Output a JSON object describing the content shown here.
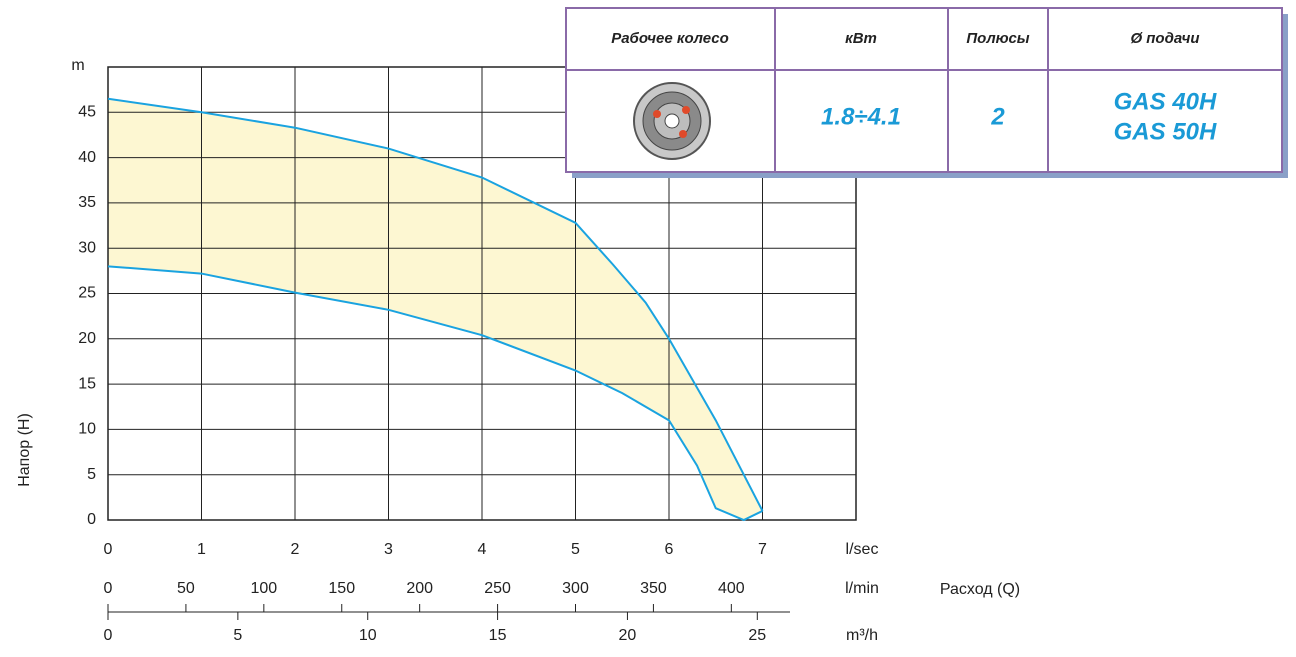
{
  "chart_data": {
    "type": "band",
    "y_axis_title": "Напор (H)",
    "y_unit": "m",
    "x_unit": "l/sec",
    "x_axis_title": "Расход (Q)",
    "xlim": [
      0,
      8
    ],
    "xticks": [
      0,
      1,
      2,
      3,
      4,
      5,
      6,
      7
    ],
    "ylim": [
      0,
      50
    ],
    "yticks": [
      0,
      5,
      10,
      15,
      20,
      25,
      30,
      35,
      40,
      45
    ],
    "grid": true,
    "band_color": "#fdf7d2",
    "series": [
      {
        "color": "#1aa3e0",
        "x": [
          0,
          1,
          2,
          3,
          4,
          5,
          5.4,
          5.75,
          6,
          6.5,
          7
        ],
        "values": [
          46.5,
          45,
          43.3,
          41,
          37.8,
          32.8,
          28.2,
          24,
          20,
          11,
          1
        ]
      },
      {
        "color": "#1aa3e0",
        "x": [
          0,
          1,
          2,
          3,
          4,
          5,
          5.5,
          6,
          6.3,
          6.5,
          6.8,
          7
        ],
        "values": [
          28,
          27.2,
          25.1,
          23.2,
          20.4,
          16.5,
          14,
          11,
          6,
          1.3,
          0,
          1
        ]
      }
    ],
    "secondary_axes": [
      {
        "unit": "l/min",
        "lim": [
          0,
          480
        ],
        "ticks": [
          0,
          50,
          100,
          150,
          200,
          250,
          300,
          350,
          400
        ]
      },
      {
        "unit": "m³/h",
        "lim": [
          0,
          28.8
        ],
        "ticks": [
          0,
          5,
          10,
          15,
          20,
          25
        ]
      }
    ],
    "table": {
      "headers": [
        "Рабочее колесо",
        "кВт",
        "Полюсы",
        "Ø подачи"
      ],
      "row": [
        "1.8÷4.1",
        "2",
        "GAS 40H",
        "GAS 50H"
      ]
    }
  }
}
